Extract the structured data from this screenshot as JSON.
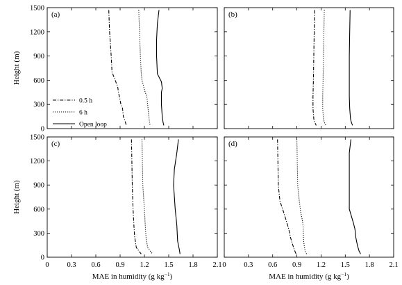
{
  "chart_data": [
    {
      "type": "line",
      "panel_label": "(a)",
      "xlim": [
        0,
        2.1
      ],
      "ylim": [
        0,
        1500
      ],
      "series": [
        {
          "name": "0.5 h",
          "style": "dashdot",
          "x": [
            0.76,
            0.77,
            0.79,
            0.8,
            0.82,
            0.87,
            0.88,
            0.91,
            0.93,
            0.94,
            0.96,
            0.97,
            0.98
          ],
          "y": [
            1470,
            1200,
            900,
            700,
            650,
            520,
            450,
            300,
            250,
            150,
            100,
            60,
            40
          ]
        },
        {
          "name": "6 h",
          "style": "dotted",
          "x": [
            1.13,
            1.14,
            1.15,
            1.16,
            1.17,
            1.21,
            1.23,
            1.24,
            1.25,
            1.26,
            1.27
          ],
          "y": [
            1470,
            1200,
            900,
            700,
            600,
            450,
            400,
            300,
            200,
            100,
            40
          ]
        },
        {
          "name": "Open loop",
          "style": "solid",
          "x": [
            1.38,
            1.36,
            1.35,
            1.35,
            1.36,
            1.41,
            1.42,
            1.41,
            1.41,
            1.42,
            1.43,
            1.44
          ],
          "y": [
            1470,
            1300,
            1100,
            900,
            680,
            580,
            500,
            450,
            300,
            150,
            80,
            40
          ]
        }
      ],
      "legend": {
        "placement": "lower-left",
        "entries": [
          "0.5 h",
          "6 h",
          "Open loop"
        ]
      },
      "grid": false
    },
    {
      "type": "line",
      "panel_label": "(b)",
      "xlim": [
        0,
        2.1
      ],
      "ylim": [
        0,
        1500
      ],
      "series": [
        {
          "name": "0.5 h",
          "style": "dashdot",
          "x": [
            1.12,
            1.115,
            1.11,
            1.105,
            1.1,
            1.1,
            1.11,
            1.12,
            1.14
          ],
          "y": [
            1470,
            1200,
            900,
            600,
            400,
            250,
            120,
            80,
            40
          ]
        },
        {
          "name": "6 h",
          "style": "dotted",
          "x": [
            1.24,
            1.235,
            1.23,
            1.225,
            1.22,
            1.22,
            1.23,
            1.24,
            1.26
          ],
          "y": [
            1470,
            1200,
            900,
            600,
            400,
            250,
            120,
            80,
            40
          ]
        },
        {
          "name": "Open loop",
          "style": "solid",
          "x": [
            1.56,
            1.555,
            1.55,
            1.55,
            1.55,
            1.555,
            1.565,
            1.575,
            1.59
          ],
          "y": [
            1470,
            1200,
            900,
            600,
            400,
            250,
            120,
            80,
            40
          ]
        }
      ],
      "grid": false
    },
    {
      "type": "line",
      "panel_label": "(c)",
      "xlim": [
        0,
        2.1
      ],
      "ylim": [
        0,
        1500
      ],
      "series": [
        {
          "name": "0.5 h",
          "style": "dashdot",
          "x": [
            1.04,
            1.045,
            1.05,
            1.06,
            1.07,
            1.08,
            1.1,
            1.13,
            1.16
          ],
          "y": [
            1470,
            1200,
            900,
            600,
            400,
            250,
            120,
            80,
            40
          ]
        },
        {
          "name": "6 h",
          "style": "dotted",
          "x": [
            1.17,
            1.175,
            1.18,
            1.2,
            1.21,
            1.22,
            1.24,
            1.27,
            1.3
          ],
          "y": [
            1470,
            1200,
            900,
            600,
            400,
            250,
            120,
            80,
            40
          ]
        },
        {
          "name": "Open loop",
          "style": "solid",
          "x": [
            1.62,
            1.6,
            1.57,
            1.56,
            1.58,
            1.6,
            1.61,
            1.63,
            1.64
          ],
          "y": [
            1470,
            1300,
            1100,
            900,
            600,
            400,
            200,
            100,
            40
          ]
        }
      ],
      "grid": false
    },
    {
      "type": "line",
      "panel_label": "(d)",
      "xlim": [
        0,
        2.1
      ],
      "ylim": [
        0,
        1500
      ],
      "series": [
        {
          "name": "0.5 h",
          "style": "dashdot",
          "x": [
            0.66,
            0.665,
            0.67,
            0.69,
            0.74,
            0.77,
            0.8,
            0.82,
            0.85,
            0.87,
            0.89
          ],
          "y": [
            1470,
            1200,
            900,
            700,
            550,
            450,
            350,
            250,
            150,
            90,
            40
          ]
        },
        {
          "name": "6 h",
          "style": "dotted",
          "x": [
            0.9,
            0.905,
            0.91,
            0.93,
            0.95,
            0.97,
            0.98,
            0.98,
            0.99,
            1.0,
            1.02
          ],
          "y": [
            1470,
            1200,
            900,
            700,
            550,
            450,
            350,
            250,
            150,
            90,
            40
          ]
        },
        {
          "name": "Open loop",
          "style": "solid",
          "x": [
            1.57,
            1.55,
            1.55,
            1.55,
            1.55,
            1.6,
            1.62,
            1.63,
            1.65,
            1.67,
            1.69
          ],
          "y": [
            1470,
            1300,
            1100,
            900,
            600,
            430,
            350,
            250,
            150,
            80,
            40
          ]
        }
      ],
      "grid": false
    }
  ],
  "axes": {
    "x_ticks": [
      "0",
      "0.3",
      "0.6",
      "0.9",
      "1.2",
      "1.5",
      "1.8",
      "2.1"
    ],
    "x_tick_values": [
      0,
      0.3,
      0.6,
      0.9,
      1.2,
      1.5,
      1.8,
      2.1
    ],
    "y_ticks": [
      "0",
      "300",
      "600",
      "900",
      "1200",
      "1500"
    ],
    "y_tick_values": [
      0,
      300,
      600,
      900,
      1200,
      1500
    ],
    "xlabel_main": "MAE in humidity (g kg",
    "xlabel_sup": "−1",
    "xlabel_close": ")",
    "ylabel": "Height (m)"
  }
}
